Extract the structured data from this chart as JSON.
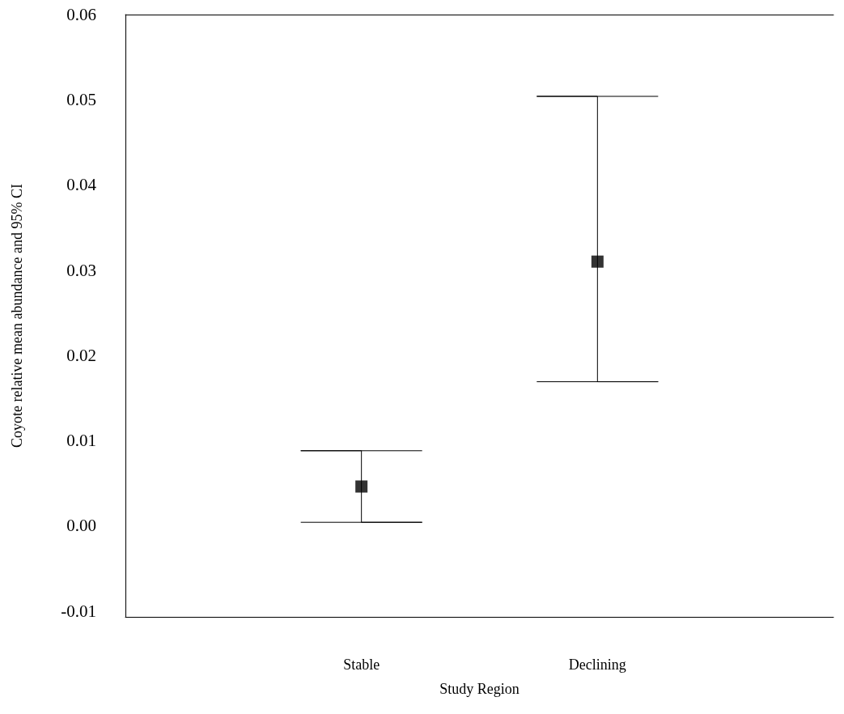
{
  "chart_data": {
    "type": "scatter",
    "xlabel": "Study Region",
    "ylabel": "Coyote relative mean abundance and 95% CI",
    "categories": [
      "Stable",
      "Declining"
    ],
    "color": "#000000",
    "values": [
      0.0046,
      0.031
    ],
    "errors": [
      [
        0.0004,
        0.0088
      ],
      [
        0.0169,
        0.0504
      ]
    ],
    "marker": "square",
    "ylim": [
      -0.0107,
      0.06
    ],
    "yticks": [
      {
        "value": -0.01,
        "label": "-0.01"
      },
      {
        "value": 0,
        "label": "0.00"
      },
      {
        "value": 0.01,
        "label": "0.01"
      },
      {
        "value": 0.02,
        "label": "0.02"
      },
      {
        "value": 0.03,
        "label": "0.03"
      },
      {
        "value": 0.04,
        "label": "0.04"
      },
      {
        "value": 0.05,
        "label": "0.05"
      },
      {
        "value": 0.06,
        "label": "0.06"
      }
    ],
    "grid": false
  }
}
